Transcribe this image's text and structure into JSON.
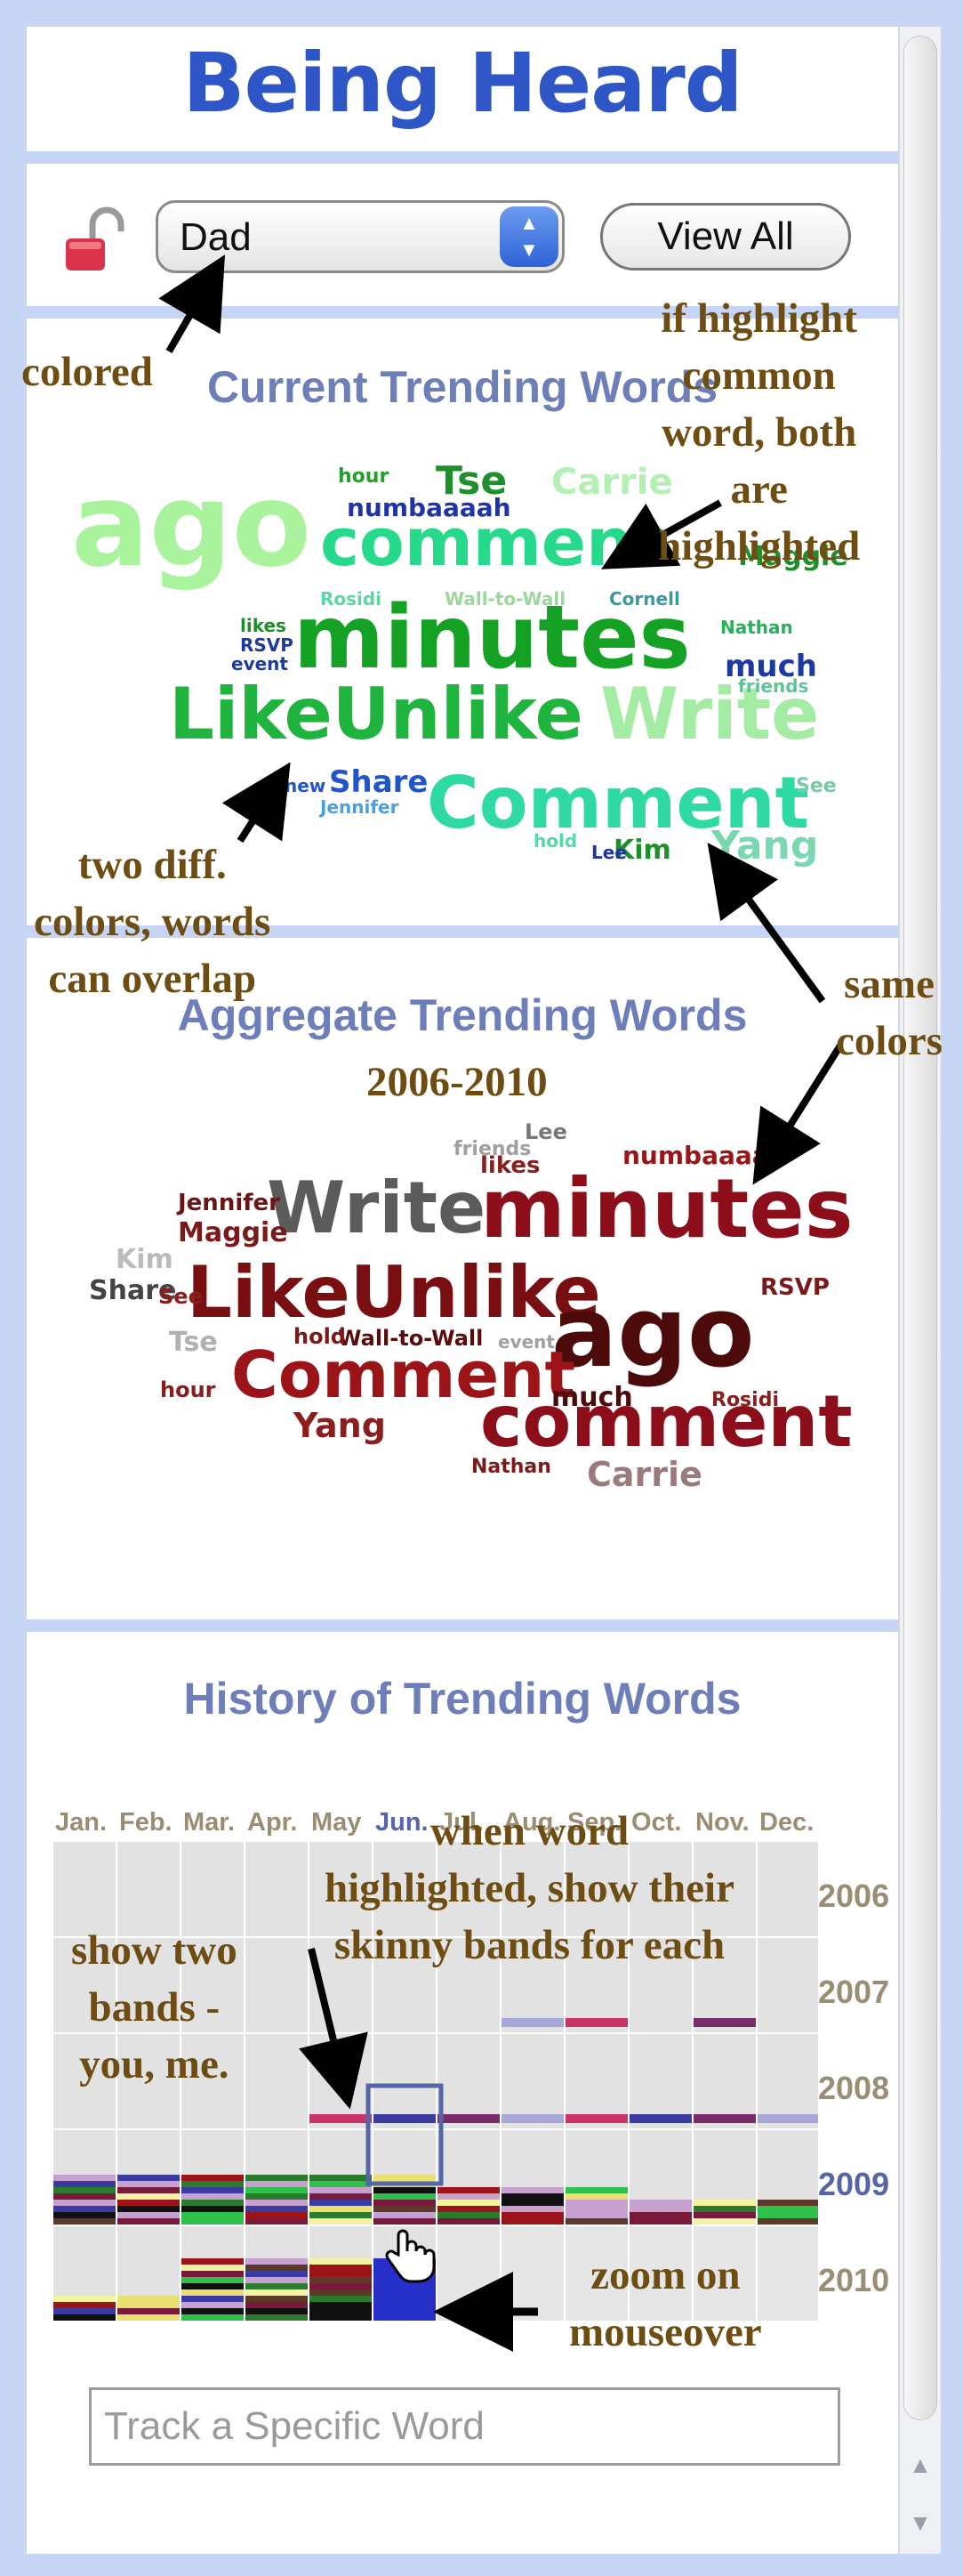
{
  "app": {
    "title": "Being Heard"
  },
  "controls": {
    "selected_user": "Dad",
    "view_all_label": "View All"
  },
  "sections": {
    "current_title": "Current Trending Words",
    "aggregate_title": "Aggregate Trending Words",
    "aggregate_years": "2006-2010",
    "history_title": "History of Trending Words"
  },
  "current_cloud": [
    {
      "text": "ago",
      "color": "#a8f39c"
    },
    {
      "text": "comment",
      "color": "#27d98a"
    },
    {
      "text": "minutes",
      "color": "#14a124"
    },
    {
      "text": "LikeUnlike",
      "color": "#1fb43d"
    },
    {
      "text": "Write",
      "color": "#a4eca4"
    },
    {
      "text": "Comment",
      "color": "#2ed9a4"
    },
    {
      "text": "Tse",
      "color": "#1e8f2c"
    },
    {
      "text": "Carrie",
      "color": "#b4efb4"
    },
    {
      "text": "numbaaaah",
      "color": "#2034a8"
    },
    {
      "text": "hour",
      "color": "#249f2c"
    },
    {
      "text": "Wall-to-Wall",
      "color": "#9cd89c"
    },
    {
      "text": "Cornell",
      "color": "#3a9aa4"
    },
    {
      "text": "Rosidi",
      "color": "#5ad8a4"
    },
    {
      "text": "likes",
      "color": "#1b8f2a"
    },
    {
      "text": "RSVP",
      "color": "#1f3a9b"
    },
    {
      "text": "event",
      "color": "#1f3a9b"
    },
    {
      "text": "Nathan",
      "color": "#27b05a"
    },
    {
      "text": "much",
      "color": "#1d3aa0"
    },
    {
      "text": "friends",
      "color": "#5cc69a"
    },
    {
      "text": "Share",
      "color": "#2056c8"
    },
    {
      "text": "Jennifer",
      "color": "#4aa0d8"
    },
    {
      "text": "new",
      "color": "#2156c8"
    },
    {
      "text": "Yang",
      "color": "#7ad8b0"
    },
    {
      "text": "Kim",
      "color": "#1f8f2c"
    },
    {
      "text": "Lee",
      "color": "#2034a8"
    },
    {
      "text": "hold",
      "color": "#5ad8a4"
    },
    {
      "text": "See",
      "color": "#7cc8a4"
    },
    {
      "text": "Maggie",
      "color": "#1e8f2c"
    }
  ],
  "aggregate_cloud": [
    {
      "text": "minutes",
      "color": "#8c0e1a"
    },
    {
      "text": "Write",
      "color": "#5b5b5b"
    },
    {
      "text": "LikeUnlike",
      "color": "#7a0f12"
    },
    {
      "text": "ago",
      "color": "#4c0a0a"
    },
    {
      "text": "Comment",
      "color": "#9a1418"
    },
    {
      "text": "comment",
      "color": "#8c0e1a"
    },
    {
      "text": "Yang",
      "color": "#8a1d1d"
    },
    {
      "text": "Carrie",
      "color": "#9a7a7a"
    },
    {
      "text": "Tse",
      "color": "#b0b0b0"
    },
    {
      "text": "Maggie",
      "color": "#7a1a1a"
    },
    {
      "text": "Jennifer",
      "color": "#6a1515"
    },
    {
      "text": "Kim",
      "color": "#bbbbbb"
    },
    {
      "text": "Share",
      "color": "#444444"
    },
    {
      "text": "See",
      "color": "#8a1d1d"
    },
    {
      "text": "hour",
      "color": "#8a1d1d"
    },
    {
      "text": "numbaaaah",
      "color": "#9a1418"
    },
    {
      "text": "much",
      "color": "#4c0a0a"
    },
    {
      "text": "Lee",
      "color": "#777777"
    },
    {
      "text": "likes",
      "color": "#8a1d1d"
    },
    {
      "text": "friends",
      "color": "#a0a0a0"
    },
    {
      "text": "RSVP",
      "color": "#7a1a1a"
    },
    {
      "text": "Wall-to-Wall",
      "color": "#5b0b0b"
    },
    {
      "text": "hold",
      "color": "#7a1a1a"
    },
    {
      "text": "Rosidi",
      "color": "#8a1d1d"
    },
    {
      "text": "Nathan",
      "color": "#7a1a1a"
    },
    {
      "text": "event",
      "color": "#a0a0a0"
    }
  ],
  "history": {
    "months": [
      "Jan.",
      "Feb.",
      "Mar.",
      "Apr.",
      "May",
      "Jun.",
      "Jul.",
      "Aug.",
      "Sep.",
      "Oct.",
      "Nov.",
      "Dec."
    ],
    "years": [
      "2006",
      "2007",
      "2008",
      "2009",
      "2010"
    ],
    "highlight_month": "Jun.",
    "highlight_year": "2009",
    "accent_color": "#5665a8",
    "cell_color": "#e2e2e2"
  },
  "track": {
    "placeholder": "Track a Specific Word"
  },
  "annotations": {
    "colored": "colored",
    "highlight_common": "if highlight\ncommon\nword, both\nare\nhighlighted",
    "two_colors": "two diff.\ncolors, words\ncan overlap",
    "same_colors": "same\ncolors",
    "word_highlighted": "when word\nhighlighted, show their\nskinny bands for each",
    "two_bands": "show two\nbands -\nyou, me.",
    "zoom": "zoom on\nmouseover"
  }
}
